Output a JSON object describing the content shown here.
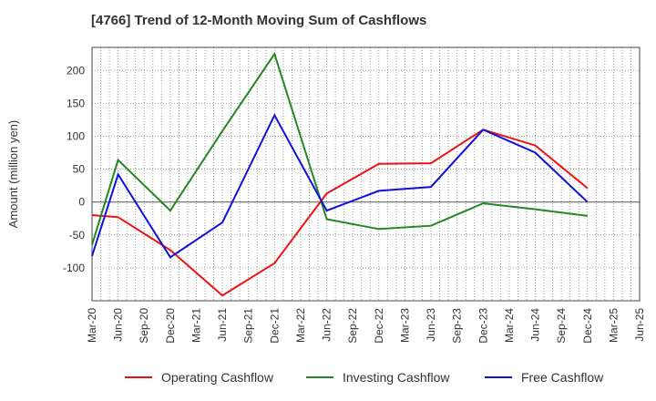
{
  "chart_data": {
    "type": "line",
    "title": "[4766]  Trend of 12-Month Moving Sum of Cashflows",
    "xlabel": "",
    "ylabel": "Amount (million yen)",
    "categories": [
      "Mar-20",
      "Jun-20",
      "Sep-20",
      "Dec-20",
      "Mar-21",
      "Jun-21",
      "Sep-21",
      "Dec-21",
      "Mar-22",
      "Jun-22",
      "Sep-22",
      "Dec-22",
      "Mar-23",
      "Jun-23",
      "Sep-23",
      "Dec-23",
      "Mar-24",
      "Jun-24",
      "Sep-24",
      "Dec-24",
      "Mar-25",
      "Jun-25"
    ],
    "ylim": [
      -150,
      235
    ],
    "yticks": [
      -100,
      -50,
      0,
      50,
      100,
      150,
      200
    ],
    "grid": true,
    "legend_position": "bottom",
    "series": [
      {
        "name": "Operating Cashflow",
        "color": "#ee1111",
        "values": [
          -20,
          -23,
          null,
          -73,
          null,
          -142,
          null,
          -93,
          null,
          13,
          null,
          58,
          null,
          59,
          null,
          110,
          null,
          86,
          null,
          21,
          null,
          null
        ]
      },
      {
        "name": "Investing Cashflow",
        "color": "#228822",
        "values": [
          -65,
          64,
          null,
          -13,
          null,
          108,
          null,
          225,
          null,
          -26,
          null,
          -41,
          null,
          -36,
          null,
          -2,
          null,
          -11,
          null,
          -21,
          null,
          null
        ]
      },
      {
        "name": "Free Cashflow",
        "color": "#1111dd",
        "values": [
          -82,
          42,
          null,
          -84,
          null,
          -31,
          null,
          132,
          null,
          -13,
          null,
          17,
          null,
          23,
          null,
          110,
          null,
          75,
          null,
          0,
          null,
          null
        ]
      }
    ]
  }
}
